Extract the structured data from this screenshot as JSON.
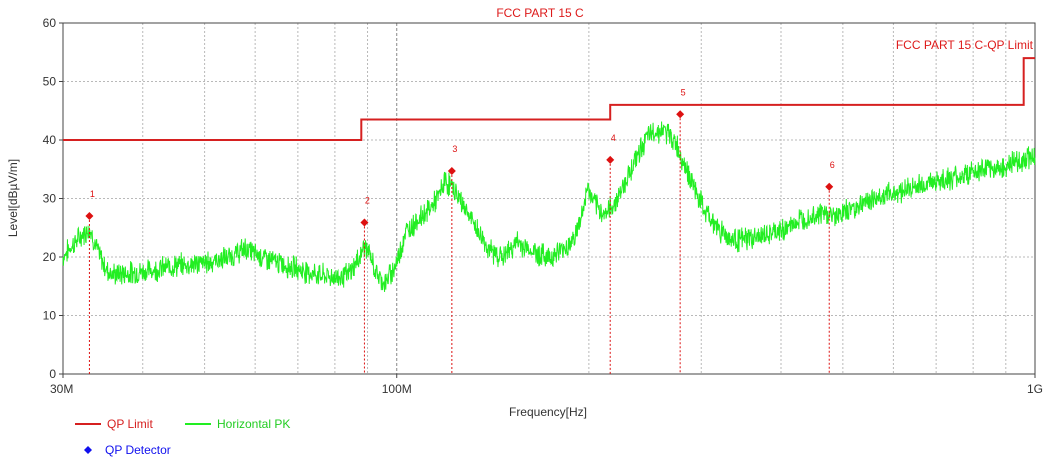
{
  "chart_data": {
    "type": "line",
    "title": "FCC PART 15 C",
    "xlabel": "Frequency[Hz]",
    "ylabel": "Level[dBµV/m]",
    "xscale": "log",
    "xlim": [
      30000000,
      1000000000
    ],
    "ylim": [
      0,
      60
    ],
    "grid": true,
    "y_ticks": [
      "0",
      "10",
      "20",
      "30",
      "40",
      "50",
      "60"
    ],
    "x_ticks": [
      {
        "value": 30000000,
        "label": "30M"
      },
      {
        "value": 100000000,
        "label": "100M"
      },
      {
        "value": 1000000000,
        "label": "1G"
      }
    ],
    "limit_label": "FCC PART 15 C-QP Limit",
    "series": [
      {
        "name": "QP Limit",
        "color": "#d62020",
        "points": [
          [
            30000000,
            40
          ],
          [
            88000000,
            40
          ],
          [
            88000000,
            43.5
          ],
          [
            216000000,
            43.5
          ],
          [
            216000000,
            46
          ],
          [
            960000000,
            46
          ],
          [
            960000000,
            54
          ],
          [
            1000000000,
            54
          ]
        ]
      },
      {
        "name": "Horizontal PK",
        "color": "#22ee22",
        "envelope": [
          [
            30000000,
            20
          ],
          [
            31000000,
            22
          ],
          [
            32000000,
            23.5
          ],
          [
            33000000,
            25
          ],
          [
            34000000,
            21
          ],
          [
            35000000,
            18
          ],
          [
            36000000,
            17
          ],
          [
            40000000,
            17.5
          ],
          [
            45000000,
            18.5
          ],
          [
            50000000,
            19
          ],
          [
            55000000,
            20
          ],
          [
            58000000,
            21.5
          ],
          [
            60000000,
            20.5
          ],
          [
            65000000,
            19
          ],
          [
            70000000,
            18
          ],
          [
            75000000,
            17
          ],
          [
            80000000,
            16.5
          ],
          [
            84000000,
            17
          ],
          [
            87000000,
            19.5
          ],
          [
            89000000,
            22
          ],
          [
            91000000,
            20
          ],
          [
            93000000,
            17
          ],
          [
            96000000,
            15.5
          ],
          [
            100000000,
            19
          ],
          [
            103000000,
            24
          ],
          [
            107000000,
            26
          ],
          [
            112000000,
            28
          ],
          [
            116000000,
            30
          ],
          [
            119000000,
            33
          ],
          [
            122000000,
            32
          ],
          [
            127000000,
            29
          ],
          [
            133000000,
            25
          ],
          [
            140000000,
            21
          ],
          [
            147000000,
            20
          ],
          [
            154000000,
            22.5
          ],
          [
            160000000,
            21.5
          ],
          [
            167000000,
            20.5
          ],
          [
            174000000,
            20
          ],
          [
            180000000,
            21
          ],
          [
            186000000,
            22
          ],
          [
            191000000,
            24
          ],
          [
            196000000,
            28
          ],
          [
            199000000,
            32
          ],
          [
            202000000,
            30
          ],
          [
            207000000,
            28
          ],
          [
            213000000,
            27.5
          ],
          [
            219000000,
            29
          ],
          [
            226000000,
            32
          ],
          [
            235000000,
            36
          ],
          [
            245000000,
            40
          ],
          [
            254000000,
            41.5
          ],
          [
            263000000,
            41.5
          ],
          [
            272000000,
            40
          ],
          [
            282000000,
            36
          ],
          [
            292000000,
            32
          ],
          [
            303000000,
            28
          ],
          [
            318000000,
            25
          ],
          [
            335000000,
            23
          ],
          [
            350000000,
            23
          ],
          [
            370000000,
            23.5
          ],
          [
            390000000,
            24
          ],
          [
            410000000,
            25
          ],
          [
            430000000,
            26.5
          ],
          [
            460000000,
            27.5
          ],
          [
            490000000,
            27
          ],
          [
            520000000,
            28.5
          ],
          [
            560000000,
            30
          ],
          [
            600000000,
            31
          ],
          [
            650000000,
            32
          ],
          [
            700000000,
            33
          ],
          [
            750000000,
            33.5
          ],
          [
            800000000,
            34.5
          ],
          [
            850000000,
            35
          ],
          [
            900000000,
            35.5
          ],
          [
            950000000,
            36.5
          ],
          [
            1000000000,
            37.5
          ]
        ]
      }
    ],
    "markers": {
      "name": "QP Detector",
      "legend_color": "#1010ee",
      "color": "#dd1111",
      "points": [
        {
          "label": "1",
          "x": 33000000,
          "y": 27.0
        },
        {
          "label": "2",
          "x": 89000000,
          "y": 25.9
        },
        {
          "label": "3",
          "x": 122000000,
          "y": 34.7
        },
        {
          "label": "4",
          "x": 216000000,
          "y": 36.6
        },
        {
          "label": "5",
          "x": 278000000,
          "y": 44.4
        },
        {
          "label": "6",
          "x": 476000000,
          "y": 32.0
        }
      ]
    },
    "colors": {
      "grid": "#b9b9b9",
      "axis": "#444444",
      "text": "#333333",
      "title": "#dd1a1a"
    }
  }
}
